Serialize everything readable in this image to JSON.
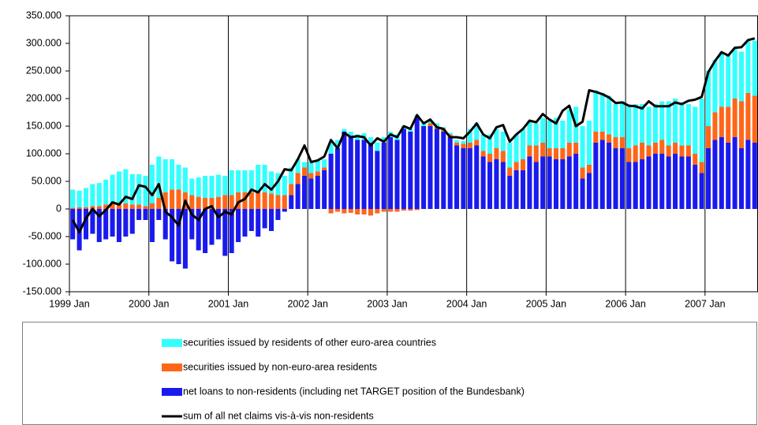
{
  "chart_data": {
    "type": "bar",
    "stacked": true,
    "categories": [
      "1999 Jan",
      null,
      null,
      null,
      null,
      null,
      null,
      null,
      null,
      null,
      null,
      null,
      "2000 Jan",
      null,
      null,
      null,
      null,
      null,
      null,
      null,
      null,
      null,
      null,
      null,
      "2001 Jan",
      null,
      null,
      null,
      null,
      null,
      null,
      null,
      null,
      null,
      null,
      null,
      "2002 Jan",
      null,
      null,
      null,
      null,
      null,
      null,
      null,
      null,
      null,
      null,
      null,
      "2003 Jan",
      null,
      null,
      null,
      null,
      null,
      null,
      null,
      null,
      null,
      null,
      null,
      "2004 Jan",
      null,
      null,
      null,
      null,
      null,
      null,
      null,
      null,
      null,
      null,
      null,
      "2005 Jan",
      null,
      null,
      null,
      null,
      null,
      null,
      null,
      null,
      null,
      null,
      null,
      "2006 Jan",
      null,
      null,
      null,
      null,
      null,
      null,
      null,
      null,
      null,
      null,
      null,
      "2007 Jan",
      null,
      null,
      null,
      null,
      null,
      null,
      null
    ],
    "series": [
      {
        "name": "securities issued by residents of other euro-area countries",
        "color": "#33ffff",
        "type": "bar",
        "values": [
          33000,
          30000,
          35000,
          40000,
          42000,
          45000,
          52000,
          60000,
          62000,
          55000,
          55000,
          55000,
          70000,
          75000,
          60000,
          55000,
          45000,
          45000,
          30000,
          35000,
          40000,
          40000,
          40000,
          35000,
          45000,
          40000,
          40000,
          40000,
          50000,
          50000,
          40000,
          40000,
          35000,
          30000,
          25000,
          10000,
          20000,
          20000,
          15000,
          20000,
          15000,
          5000,
          10000,
          10000,
          12000,
          10000,
          15000,
          10000,
          10000,
          10000,
          5000,
          5000,
          5000,
          5000,
          5000,
          5000,
          3000,
          3000,
          5000,
          5000,
          25000,
          30000,
          30000,
          35000,
          35000,
          35000,
          45000,
          50000,
          55000,
          45000,
          40000,
          45000,
          50000,
          55000,
          50000,
          60000,
          65000,
          75000,
          80000,
          75000,
          70000,
          70000,
          60000,
          65000,
          75000,
          75000,
          70000,
          70000,
          70000,
          70000,
          80000,
          80000,
          75000,
          75000,
          85000,
          115000,
          100000,
          95000,
          100000,
          95000,
          90000,
          90000,
          95000,
          100000
        ]
      },
      {
        "name": "securities issued by non-euro-area residents",
        "color": "#ff6619",
        "type": "bar",
        "values": [
          2000,
          3000,
          3000,
          5000,
          5000,
          8000,
          10000,
          8000,
          10000,
          8000,
          8000,
          5000,
          10000,
          20000,
          30000,
          35000,
          35000,
          30000,
          25000,
          22000,
          20000,
          20000,
          22000,
          25000,
          25000,
          30000,
          30000,
          30000,
          30000,
          30000,
          28000,
          25000,
          25000,
          20000,
          20000,
          15000,
          10000,
          8000,
          5000,
          -8000,
          -5000,
          -8000,
          -7000,
          -10000,
          -10000,
          -12000,
          -8000,
          -5000,
          -5000,
          -5000,
          -3000,
          -3000,
          -2000,
          0,
          5000,
          5000,
          5000,
          5000,
          5000,
          8000,
          10000,
          10000,
          10000,
          15000,
          20000,
          20000,
          15000,
          15000,
          20000,
          20000,
          30000,
          25000,
          15000,
          20000,
          20000,
          25000,
          20000,
          20000,
          15000,
          20000,
          15000,
          15000,
          20000,
          20000,
          25000,
          30000,
          30000,
          20000,
          20000,
          25000,
          20000,
          20000,
          20000,
          20000,
          20000,
          20000,
          40000,
          50000,
          55000,
          65000,
          70000,
          85000,
          85000,
          85000
        ]
      },
      {
        "name": "net loans to non-residents (including net TARGET position of the Bundesbank)",
        "color": "#1a1aee",
        "type": "bar",
        "values": [
          -55000,
          -75000,
          -55000,
          -45000,
          -60000,
          -55000,
          -50000,
          -60000,
          -50000,
          -45000,
          -20000,
          -20000,
          -60000,
          -20000,
          -55000,
          -95000,
          -100000,
          -108000,
          -55000,
          -75000,
          -80000,
          -65000,
          -55000,
          -85000,
          -80000,
          -60000,
          -50000,
          -40000,
          -50000,
          -35000,
          -40000,
          -20000,
          -5000,
          25000,
          45000,
          60000,
          55000,
          60000,
          70000,
          100000,
          110000,
          140000,
          130000,
          125000,
          125000,
          120000,
          105000,
          120000,
          130000,
          125000,
          145000,
          140000,
          165000,
          150000,
          150000,
          145000,
          140000,
          130000,
          115000,
          110000,
          110000,
          115000,
          95000,
          85000,
          90000,
          85000,
          60000,
          70000,
          70000,
          95000,
          85000,
          95000,
          95000,
          90000,
          90000,
          95000,
          100000,
          55000,
          65000,
          120000,
          125000,
          120000,
          110000,
          110000,
          85000,
          85000,
          90000,
          95000,
          100000,
          100000,
          95000,
          100000,
          95000,
          95000,
          80000,
          65000,
          110000,
          125000,
          130000,
          120000,
          130000,
          110000,
          125000,
          120000
        ]
      },
      {
        "name": "sum of all net claims vis-à-vis non-residents",
        "color": "#000000",
        "type": "line",
        "values": [
          -20000,
          -42000,
          -17000,
          0,
          -13000,
          -2000,
          12000,
          8000,
          22000,
          18000,
          43000,
          40000,
          25000,
          45000,
          -5000,
          -15000,
          -30000,
          15000,
          -10000,
          -20000,
          0,
          5000,
          -15000,
          -5000,
          -10000,
          12000,
          18000,
          35000,
          30000,
          45000,
          35000,
          50000,
          72000,
          70000,
          90000,
          115000,
          85000,
          88000,
          95000,
          125000,
          110000,
          138000,
          130000,
          132000,
          130000,
          115000,
          128000,
          122000,
          135000,
          130000,
          150000,
          145000,
          170000,
          155000,
          162000,
          148000,
          145000,
          130000,
          130000,
          128000,
          140000,
          155000,
          135000,
          128000,
          148000,
          152000,
          122000,
          135000,
          145000,
          160000,
          157000,
          172000,
          162000,
          155000,
          178000,
          187000,
          150000,
          158000,
          215000,
          212000,
          208000,
          202000,
          192000,
          193000,
          187000,
          186000,
          182000,
          195000,
          186000,
          186000,
          186000,
          193000,
          190000,
          196000,
          198000,
          203000,
          248000,
          268000,
          284000,
          278000,
          292000,
          293000,
          306000,
          309000
        ]
      }
    ],
    "ylim": [
      -150000,
      350000
    ],
    "yticks": [
      {
        "value": -150000,
        "label": "-150.000"
      },
      {
        "value": -100000,
        "label": "-100.000"
      },
      {
        "value": -50000,
        "label": "-50.000"
      },
      0,
      {
        "value": 50000,
        "label": "50.000"
      },
      {
        "value": 100000,
        "label": "100.000"
      },
      {
        "value": 150000,
        "label": "150.000"
      },
      {
        "value": 200000,
        "label": "200.000"
      },
      {
        "value": 250000,
        "label": "250.000"
      },
      {
        "value": 300000,
        "label": "300.000"
      },
      {
        "value": 350000,
        "label": "350.000"
      }
    ],
    "grid": false
  }
}
